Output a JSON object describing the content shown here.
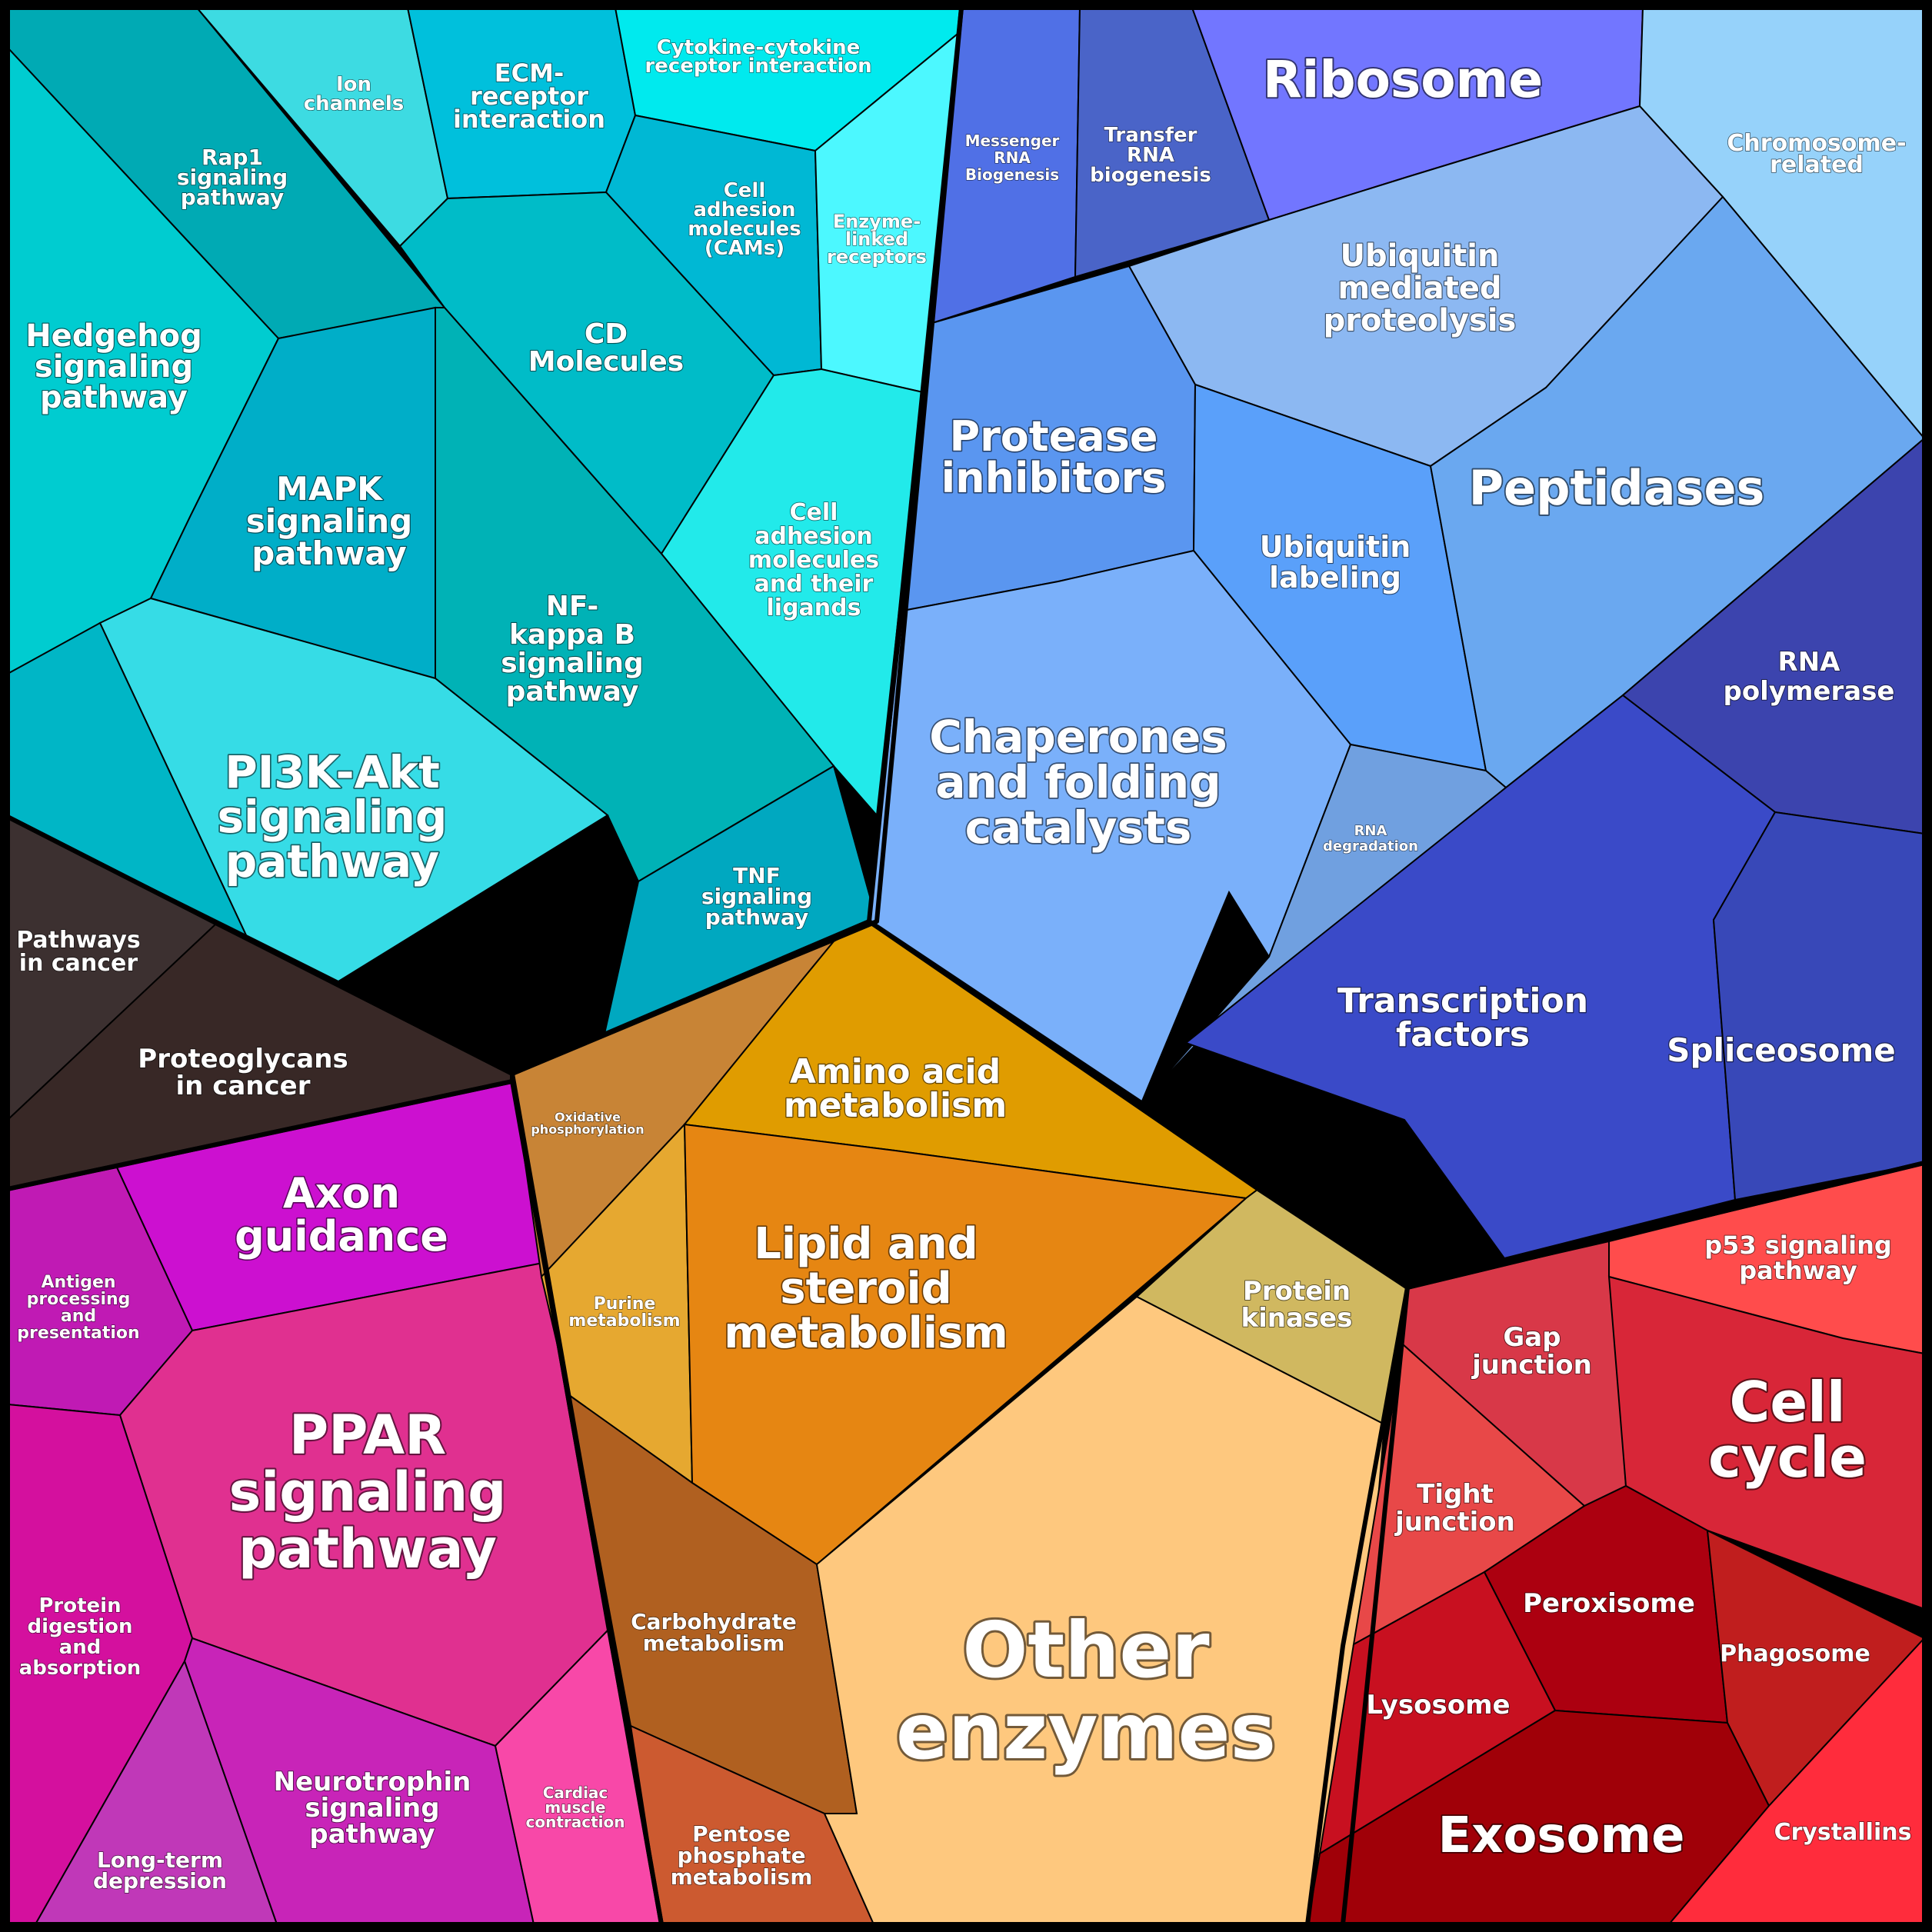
{
  "groups": [
    {
      "name": "signaling",
      "color": "#00c8d2",
      "cells": [
        {
          "name": "rap1",
          "color": "#00aab4",
          "label": [
            "Rap1",
            "signaling",
            "pathway"
          ]
        },
        {
          "name": "ion-channels",
          "color": "#3ddbe2",
          "label": [
            "Ion",
            "channels"
          ]
        },
        {
          "name": "ecm-receptor",
          "color": "#00c0dc",
          "label": [
            "ECM-",
            "receptor",
            "interaction"
          ]
        },
        {
          "name": "cytokine",
          "color": "#00eaee",
          "label": [
            "Cytokine-cytokine",
            "receptor interaction"
          ]
        },
        {
          "name": "cams",
          "color": "#00b8d4",
          "label": [
            "Cell",
            "adhesion",
            "molecules",
            "(CAMs)"
          ]
        },
        {
          "name": "enzyme-linked",
          "color": "#4cf8ff",
          "label": [
            "Enzyme-",
            "linked",
            "receptors"
          ]
        },
        {
          "name": "hedgehog",
          "color": "#00ccd0",
          "label": [
            "Hedgehog",
            "signaling",
            "pathway"
          ]
        },
        {
          "name": "cd-molecules",
          "color": "#00bcc8",
          "label": [
            "CD",
            "Molecules"
          ]
        },
        {
          "name": "cell-adhesion-ligands",
          "color": "#22eaea",
          "label": [
            "Cell",
            "adhesion",
            "molecules",
            "and their",
            "ligands"
          ]
        },
        {
          "name": "mapk",
          "color": "#00aec8",
          "label": [
            "MAPK",
            "signaling",
            "pathway"
          ]
        },
        {
          "name": "nfkb",
          "color": "#00b2b6",
          "label": [
            "NF-",
            "kappa B",
            "signaling",
            "pathway"
          ]
        },
        {
          "name": "pi3k",
          "color": "#36dce6",
          "label": [
            "PI3K-Akt",
            "signaling",
            "pathway"
          ]
        },
        {
          "name": "tnf",
          "color": "#00a8c0",
          "label": [
            "TNF",
            "signaling",
            "pathway"
          ]
        },
        {
          "name": "signal-misc",
          "color": "#00b6c6",
          "label": []
        }
      ]
    },
    {
      "name": "genetic-processing",
      "color": "#5a78e6",
      "cells": [
        {
          "name": "mrna-biogenesis",
          "color": "#5070e6",
          "label": [
            "Messenger",
            "RNA",
            "Biogenesis"
          ]
        },
        {
          "name": "trna-biogenesis",
          "color": "#4a64c8",
          "label": [
            "Transfer",
            "RNA",
            "biogenesis"
          ]
        },
        {
          "name": "ribosome",
          "color": "#7276ff",
          "label": [
            "Ribosome"
          ]
        },
        {
          "name": "chromosome",
          "color": "#96d2fa",
          "label": [
            "Chromosome-",
            "related"
          ]
        },
        {
          "name": "ubiquitin-proteolysis",
          "color": "#8cb8f2",
          "label": [
            "Ubiquitin",
            "mediated",
            "proteolysis"
          ]
        },
        {
          "name": "protease-inhibitors",
          "color": "#5a96f0",
          "label": [
            "Protease",
            "inhibitors"
          ]
        },
        {
          "name": "ubiquitin-labeling",
          "color": "#5aa0fa",
          "label": [
            "Ubiquitin",
            "labeling"
          ]
        },
        {
          "name": "peptidases",
          "color": "#6aa8f0",
          "label": [
            "Peptidases"
          ]
        },
        {
          "name": "chaperones",
          "color": "#7ab0fa",
          "label": [
            "Chaperones",
            "and folding",
            "catalysts"
          ]
        },
        {
          "name": "rna-degradation",
          "color": "#70a0e0",
          "label": [
            "RNA",
            "degradation"
          ]
        },
        {
          "name": "rna-polymerase",
          "color": "#3c44ae",
          "label": [
            "RNA",
            "polymerase"
          ]
        },
        {
          "name": "transcription-factors",
          "color": "#3a4ac8",
          "label": [
            "Transcription",
            "factors"
          ]
        },
        {
          "name": "spliceosome",
          "color": "#3848b8",
          "label": [
            "Spliceosome"
          ]
        }
      ]
    },
    {
      "name": "cancer",
      "color": "#3a2a28",
      "cells": [
        {
          "name": "pathways-in-cancer",
          "color": "#3c3030",
          "label": [
            "Pathways",
            "in cancer"
          ]
        },
        {
          "name": "proteoglycans",
          "color": "#382826",
          "label": [
            "Proteoglycans",
            "in cancer"
          ]
        }
      ]
    },
    {
      "name": "organismal",
      "color": "#d020a0",
      "cells": [
        {
          "name": "axon-guidance",
          "color": "#cc10d0",
          "label": [
            "Axon",
            "guidance"
          ]
        },
        {
          "name": "antigen",
          "color": "#c01ab4",
          "label": [
            "Antigen",
            "processing",
            "and",
            "presentation"
          ]
        },
        {
          "name": "ppar",
          "color": "#e03090",
          "label": [
            "PPAR",
            "signaling",
            "pathway"
          ]
        },
        {
          "name": "protein-digestion",
          "color": "#d4109e",
          "label": [
            "Protein",
            "digestion",
            "and",
            "absorption"
          ]
        },
        {
          "name": "neurotrophin",
          "color": "#c824b8",
          "label": [
            "Neurotrophin",
            "signaling",
            "pathway"
          ]
        },
        {
          "name": "long-term-depression",
          "color": "#c038b8",
          "label": [
            "Long-term",
            "depression"
          ]
        },
        {
          "name": "cardiac",
          "color": "#f848a8",
          "label": [
            "Cardiac",
            "muscle",
            "contraction"
          ]
        }
      ]
    },
    {
      "name": "metabolism",
      "color": "#e08818",
      "cells": [
        {
          "name": "oxidative-phosphorylation",
          "color": "#c88436",
          "label": [
            "Oxidative",
            "phosphorylation"
          ]
        },
        {
          "name": "amino-acid",
          "color": "#e09c00",
          "label": [
            "Amino acid",
            "metabolism"
          ]
        },
        {
          "name": "purine",
          "color": "#e6a830",
          "label": [
            "Purine",
            "metabolism"
          ]
        },
        {
          "name": "lipid",
          "color": "#e68612",
          "label": [
            "Lipid and",
            "steroid",
            "metabolism"
          ]
        },
        {
          "name": "protein-kinases",
          "color": "#d0b860",
          "label": [
            "Protein",
            "kinases"
          ]
        },
        {
          "name": "carbohydrate",
          "color": "#b06020",
          "label": [
            "Carbohydrate",
            "metabolism"
          ]
        },
        {
          "name": "pentose",
          "color": "#cc5a30",
          "label": [
            "Pentose",
            "phosphate",
            "metabolism"
          ]
        },
        {
          "name": "other-enzymes",
          "color": "#fec87e",
          "label": [
            "Other",
            "enzymes"
          ]
        }
      ]
    },
    {
      "name": "cellular-processes",
      "color": "#d03040",
      "cells": [
        {
          "name": "gap-junction",
          "color": "#d83848",
          "label": [
            "Gap",
            "junction"
          ]
        },
        {
          "name": "p53",
          "color": "#ff4c4c",
          "label": [
            "p53 signaling",
            "pathway"
          ]
        },
        {
          "name": "cell-cycle",
          "color": "#d82638",
          "label": [
            "Cell",
            "cycle"
          ]
        },
        {
          "name": "tight-junction",
          "color": "#e84848",
          "label": [
            "Tight",
            "junction"
          ]
        },
        {
          "name": "peroxisome",
          "color": "#ac0010",
          "label": [
            "Peroxisome"
          ]
        },
        {
          "name": "phagosome",
          "color": "#c01e1e",
          "label": [
            "Phagosome"
          ]
        },
        {
          "name": "lysosome",
          "color": "#c81020",
          "label": [
            "Lysosome"
          ]
        },
        {
          "name": "exosome",
          "color": "#a00008",
          "label": [
            "Exosome"
          ]
        },
        {
          "name": "crystallins",
          "color": "#ff2c3c",
          "label": [
            "Crystallins"
          ]
        }
      ]
    }
  ]
}
